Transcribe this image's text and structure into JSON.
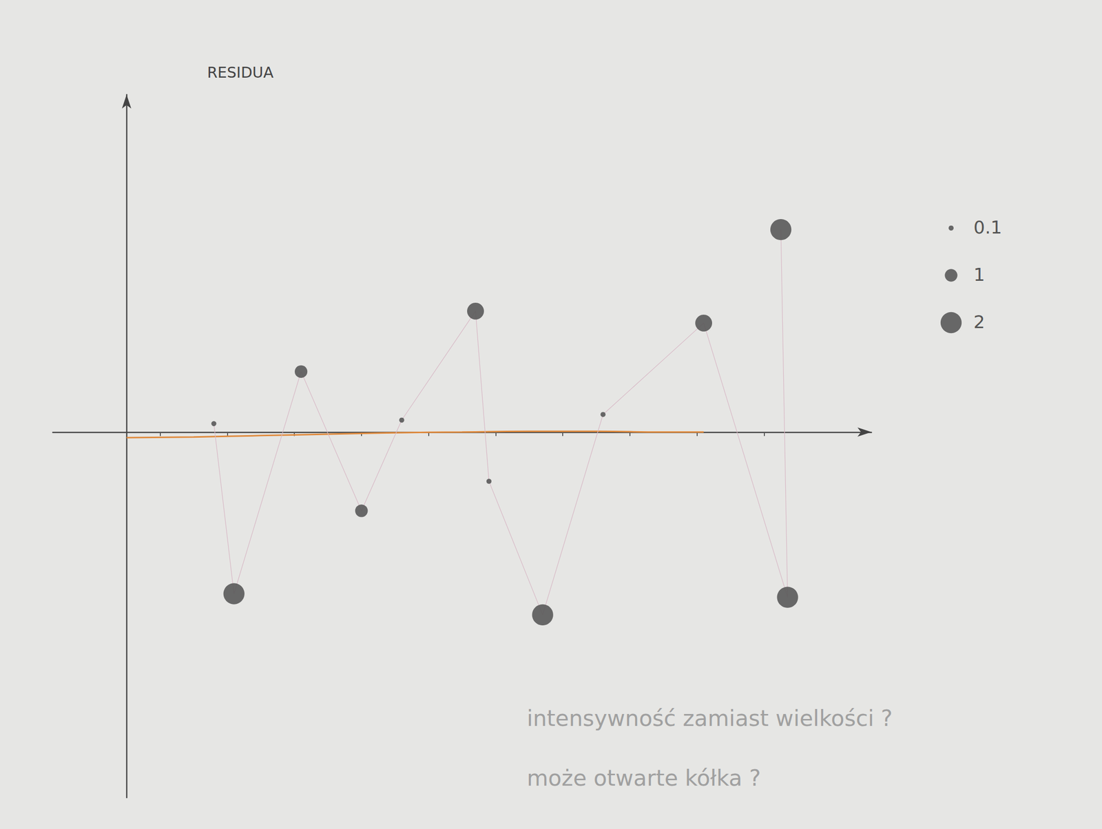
{
  "chart_data": {
    "type": "line",
    "y_label": "RESIDUA",
    "xlim": [
      -1.1,
      11.1
    ],
    "xticks": [
      0.5,
      1.5,
      2.5,
      3.5,
      4.5,
      5.5,
      6.5,
      7.5,
      8.5,
      9.5
    ],
    "ylim": [
      -5.2,
      4.8
    ],
    "tick_labels": false,
    "grid": false,
    "size_legend": [
      0.1,
      1,
      2
    ],
    "series": [
      {
        "type": "line",
        "color": "#555555",
        "marker": "circle",
        "x": [
          1.3,
          1.6,
          2.6,
          3.5,
          4.1,
          5.2,
          5.4,
          6.2,
          7.1,
          8.6,
          9.85,
          9.75
        ],
        "values": [
          0.12,
          -2.3,
          0.86,
          -1.12,
          0.17,
          1.72,
          -0.7,
          -2.6,
          0.25,
          1.55,
          -2.35,
          2.88
        ],
        "sizes": [
          0.1,
          2,
          1,
          1,
          0.1,
          1.5,
          0.1,
          2,
          0.1,
          1.5,
          2,
          2
        ]
      },
      {
        "type": "line",
        "color": "#e08a3c",
        "marker": "none",
        "x": [
          0,
          1,
          2,
          3,
          4,
          5,
          6,
          7,
          8,
          8.6
        ],
        "values": [
          -0.08,
          -0.07,
          -0.05,
          -0.03,
          -0.01,
          0,
          0.01,
          0.01,
          0,
          0
        ]
      }
    ],
    "annotations": [
      "intensywność zamiast wielkości ?",
      "może otwarte kółka ?"
    ]
  }
}
